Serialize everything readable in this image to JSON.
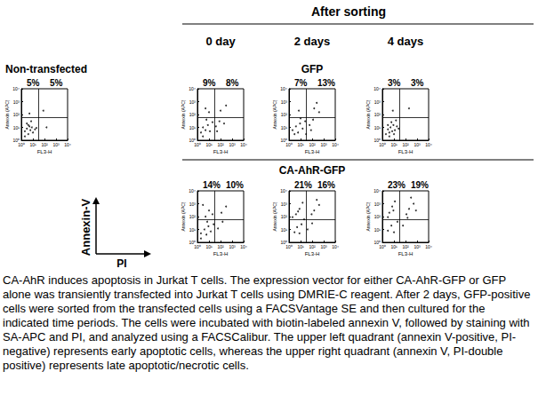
{
  "figure": {
    "header": "After sorting",
    "columns": [
      "0 day",
      "2 days",
      "4 days"
    ],
    "rows": [
      "GFP",
      "CA-AhR-GFP"
    ],
    "control": "Non-transfected",
    "key_axes": {
      "y": "Annexin-V",
      "x": "PI"
    },
    "caption": "CA-AhR induces apoptosis in Jurkat T cells. The expression vector for either CA-AhR-GFP or GFP alone was transiently transfected into Jurkat T cells using DMRIE-C reagent. After 2 days, GFP-positive cells were sorted from the transfected cells using a FACSVantage SE and then cultured for the indicated time periods. The cells were incubated with biotin-labeled annexin V, followed by staining with SA-APC and PI, and analyzed using a FACSCalibur. The upper left quadrant (annexin V-positive, PI-negative) represents early apoptotic cells, whereas the upper right quadrant (annexin V, PI-double positive) represents late apoptotic/necrotic cells."
  },
  "chart_data": [
    {
      "type": "scatter",
      "x_label": "FL3-H",
      "y_label": "Annexin (APC)",
      "log": true,
      "color": "#000000",
      "marker": "circle",
      "xlim": [
        1,
        10000
      ],
      "ylim": [
        1,
        10000
      ],
      "xticks": [
        {
          "value": 1,
          "label": "10⁰"
        },
        {
          "value": 10,
          "label": "10¹"
        },
        {
          "value": 100,
          "label": "10²"
        },
        {
          "value": 1000,
          "label": "10³"
        },
        {
          "value": 10000,
          "label": "10⁴"
        }
      ],
      "yticks": [
        {
          "value": 1,
          "label": "10⁰"
        },
        {
          "value": 10,
          "label": "10¹"
        },
        {
          "value": 100,
          "label": "10²"
        },
        {
          "value": 1000,
          "label": "10³"
        },
        {
          "value": 10000,
          "label": "10⁴"
        }
      ],
      "gate": {
        "x": 30,
        "y": 60
      },
      "quadrant_labels": {
        "upper_left": "5%",
        "upper_right": "5%"
      },
      "x": [
        2,
        3,
        4,
        5,
        6,
        8,
        3,
        10,
        15,
        4,
        7,
        20,
        5,
        80,
        150,
        2
      ],
      "y": [
        5,
        8,
        3,
        12,
        6,
        10,
        20,
        4,
        7,
        15,
        30,
        9,
        120,
        200,
        10,
        2
      ]
    },
    {
      "type": "scatter",
      "x_label": "FL3-H",
      "y_label": "Annexin (APC)",
      "log": true,
      "color": "#000000",
      "marker": "circle",
      "xlim": [
        1,
        10000
      ],
      "ylim": [
        1,
        10000
      ],
      "xticks": [
        {
          "value": 1,
          "label": "10⁰"
        },
        {
          "value": 10,
          "label": "10¹"
        },
        {
          "value": 100,
          "label": "10²"
        },
        {
          "value": 1000,
          "label": "10³"
        },
        {
          "value": 10000,
          "label": "10⁴"
        }
      ],
      "yticks": [
        {
          "value": 1,
          "label": "10⁰"
        },
        {
          "value": 10,
          "label": "10¹"
        },
        {
          "value": 100,
          "label": "10²"
        },
        {
          "value": 1000,
          "label": "10³"
        },
        {
          "value": 10000,
          "label": "10⁴"
        }
      ],
      "gate": {
        "x": 30,
        "y": 60
      },
      "quadrant_labels": {
        "upper_left": "9%",
        "upper_right": "8%"
      },
      "x": [
        2,
        3,
        5,
        8,
        12,
        20,
        6,
        40,
        80,
        10,
        5,
        100,
        300,
        200,
        3,
        50
      ],
      "y": [
        4,
        10,
        6,
        15,
        5,
        25,
        40,
        12,
        30,
        150,
        300,
        200,
        500,
        20,
        2,
        5
      ]
    },
    {
      "type": "scatter",
      "x_label": "FL3-H",
      "y_label": "Annexin (APC)",
      "log": true,
      "color": "#000000",
      "marker": "circle",
      "xlim": [
        1,
        10000
      ],
      "ylim": [
        1,
        10000
      ],
      "xticks": [
        {
          "value": 1,
          "label": "10⁰"
        },
        {
          "value": 10,
          "label": "10¹"
        },
        {
          "value": 100,
          "label": "10²"
        },
        {
          "value": 1000,
          "label": "10³"
        },
        {
          "value": 10000,
          "label": "10⁴"
        }
      ],
      "yticks": [
        {
          "value": 1,
          "label": "10⁰"
        },
        {
          "value": 10,
          "label": "10¹"
        },
        {
          "value": 100,
          "label": "10²"
        },
        {
          "value": 1000,
          "label": "10³"
        },
        {
          "value": 10000,
          "label": "10⁴"
        }
      ],
      "gate": {
        "x": 30,
        "y": 60
      },
      "quadrant_labels": {
        "upper_left": "7%",
        "upper_right": "13%"
      },
      "x": [
        2,
        4,
        6,
        9,
        15,
        25,
        60,
        120,
        7,
        150,
        400,
        250,
        30,
        3,
        80,
        10
      ],
      "y": [
        6,
        12,
        4,
        20,
        8,
        30,
        15,
        40,
        200,
        300,
        150,
        800,
        3,
        3,
        6,
        50
      ]
    },
    {
      "type": "scatter",
      "x_label": "FL3-H",
      "y_label": "Annexin (APC)",
      "log": true,
      "color": "#000000",
      "marker": "circle",
      "xlim": [
        1,
        10000
      ],
      "ylim": [
        1,
        10000
      ],
      "xticks": [
        {
          "value": 1,
          "label": "10⁰"
        },
        {
          "value": 10,
          "label": "10¹"
        },
        {
          "value": 100,
          "label": "10²"
        },
        {
          "value": 1000,
          "label": "10³"
        },
        {
          "value": 10000,
          "label": "10⁴"
        }
      ],
      "yticks": [
        {
          "value": 1,
          "label": "10⁰"
        },
        {
          "value": 10,
          "label": "10¹"
        },
        {
          "value": 100,
          "label": "10²"
        },
        {
          "value": 1000,
          "label": "10³"
        },
        {
          "value": 10000,
          "label": "10⁴"
        }
      ],
      "gate": {
        "x": 30,
        "y": 60
      },
      "quadrant_labels": {
        "upper_left": "3%",
        "upper_right": "3%"
      },
      "x": [
        2,
        3,
        4,
        5,
        7,
        9,
        12,
        6,
        18,
        4,
        25,
        8,
        200,
        15,
        3,
        10
      ],
      "y": [
        3,
        7,
        4,
        10,
        5,
        15,
        6,
        25,
        12,
        2,
        8,
        200,
        300,
        35,
        15,
        3
      ]
    },
    {
      "type": "scatter",
      "x_label": "FL3-H",
      "y_label": "Annexin (APC)",
      "log": true,
      "color": "#000000",
      "marker": "circle",
      "xlim": [
        1,
        10000
      ],
      "ylim": [
        1,
        10000
      ],
      "xticks": [
        {
          "value": 1,
          "label": "10⁰"
        },
        {
          "value": 10,
          "label": "10¹"
        },
        {
          "value": 100,
          "label": "10²"
        },
        {
          "value": 1000,
          "label": "10³"
        },
        {
          "value": 10000,
          "label": "10⁴"
        }
      ],
      "yticks": [
        {
          "value": 1,
          "label": "10⁰"
        },
        {
          "value": 10,
          "label": "10¹"
        },
        {
          "value": 100,
          "label": "10²"
        },
        {
          "value": 1000,
          "label": "10³"
        },
        {
          "value": 10000,
          "label": "10⁴"
        }
      ],
      "gate": {
        "x": 30,
        "y": 60
      },
      "quadrant_labels": {
        "upper_left": "14%",
        "upper_right": "10%"
      },
      "x": [
        2,
        4,
        6,
        9,
        14,
        25,
        5,
        10,
        3,
        120,
        300,
        60,
        150,
        7,
        20,
        2
      ],
      "y": [
        5,
        10,
        4,
        18,
        7,
        25,
        100,
        300,
        800,
        200,
        600,
        12,
        40,
        40,
        150,
        2
      ]
    },
    {
      "type": "scatter",
      "x_label": "FL3-H",
      "y_label": "Annexin (APC)",
      "log": true,
      "color": "#000000",
      "marker": "circle",
      "xlim": [
        1,
        10000
      ],
      "ylim": [
        1,
        10000
      ],
      "xticks": [
        {
          "value": 1,
          "label": "10⁰"
        },
        {
          "value": 10,
          "label": "10¹"
        },
        {
          "value": 100,
          "label": "10²"
        },
        {
          "value": 1000,
          "label": "10³"
        },
        {
          "value": 10000,
          "label": "10⁴"
        }
      ],
      "yticks": [
        {
          "value": 1,
          "label": "10⁰"
        },
        {
          "value": 10,
          "label": "10¹"
        },
        {
          "value": 100,
          "label": "10²"
        },
        {
          "value": 1000,
          "label": "10³"
        },
        {
          "value": 10000,
          "label": "10⁴"
        }
      ],
      "gate": {
        "x": 30,
        "y": 60
      },
      "quadrant_labels": {
        "upper_left": "21%",
        "upper_right": "16%"
      },
      "x": [
        3,
        5,
        8,
        12,
        4,
        8,
        15,
        2,
        150,
        400,
        250,
        90,
        40,
        100,
        20,
        6
      ],
      "y": [
        6,
        15,
        5,
        25,
        150,
        400,
        1200,
        90,
        300,
        800,
        2000,
        150,
        10,
        30,
        60,
        250
      ]
    },
    {
      "type": "scatter",
      "x_label": "FL3-H",
      "y_label": "Annexin (APC)",
      "log": true,
      "color": "#000000",
      "marker": "circle",
      "xlim": [
        1,
        10000
      ],
      "ylim": [
        1,
        10000
      ],
      "xticks": [
        {
          "value": 1,
          "label": "10⁰"
        },
        {
          "value": 10,
          "label": "10¹"
        },
        {
          "value": 100,
          "label": "10²"
        },
        {
          "value": 1000,
          "label": "10³"
        },
        {
          "value": 10000,
          "label": "10⁴"
        }
      ],
      "yticks": [
        {
          "value": 1,
          "label": "10⁰"
        },
        {
          "value": 10,
          "label": "10¹"
        },
        {
          "value": 100,
          "label": "10²"
        },
        {
          "value": 1000,
          "label": "10³"
        },
        {
          "value": 10000,
          "label": "10⁴"
        }
      ],
      "gate": {
        "x": 30,
        "y": 60
      },
      "quadrant_labels": {
        "upper_left": "23%",
        "upper_right": "19%"
      },
      "x": [
        3,
        6,
        10,
        4,
        7,
        12,
        3,
        200,
        500,
        300,
        120,
        800,
        60,
        20,
        9,
        150
      ],
      "y": [
        8,
        20,
        6,
        200,
        600,
        1500,
        90,
        400,
        1000,
        3000,
        150,
        300,
        20,
        40,
        300,
        80
      ]
    }
  ]
}
